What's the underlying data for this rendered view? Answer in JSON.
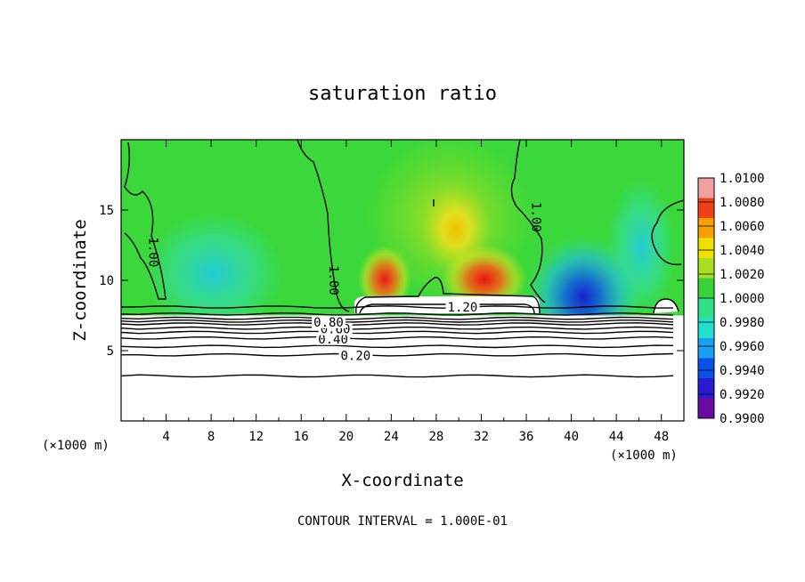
{
  "chart_data": {
    "type": "heatmap",
    "title": "saturation ratio",
    "xlabel": "X-coordinate",
    "ylabel": "Z-coordinate",
    "x_unit_label": "(×1000 m)",
    "z_unit_label": "(×1000 m)",
    "xlim": [
      0,
      50
    ],
    "ylim": [
      0,
      20
    ],
    "x_ticks": [
      4,
      8,
      12,
      16,
      20,
      24,
      28,
      32,
      36,
      40,
      44,
      48
    ],
    "x_tick_labels": [
      "4",
      "8",
      "12",
      "16",
      "20",
      "24",
      "28",
      "32",
      "36",
      "40",
      "44",
      "48"
    ],
    "y_ticks": [
      5,
      10,
      15
    ],
    "y_tick_labels": [
      "5",
      "10",
      "15"
    ],
    "footer": "CONTOUR INTERVAL = 1.000E-01",
    "colorbar": {
      "min": 0.99,
      "max": 1.01,
      "tick_values": [
        0.99,
        0.992,
        0.994,
        0.996,
        0.998,
        1.0,
        1.002,
        1.004,
        1.006,
        1.008,
        1.01
      ],
      "tick_labels": [
        "0.9900",
        "0.9920",
        "0.9940",
        "0.9960",
        "0.9980",
        "1.0000",
        "1.0020",
        "1.0040",
        "1.0060",
        "1.0080",
        "1.0100"
      ],
      "colors": [
        "#6b0aa0",
        "#2a1ad0",
        "#0a50e8",
        "#1aa0f0",
        "#22e0d0",
        "#2ee08a",
        "#3ad23a",
        "#a8e020",
        "#f0e000",
        "#f8a000",
        "#f04018",
        "#f0a0a0"
      ]
    },
    "contour_lines": [
      {
        "label": "0.20",
        "z": 4.7
      },
      {
        "label": "0.40",
        "z": 5.9
      },
      {
        "label": "0.60",
        "z": 6.6
      },
      {
        "label": "0.80",
        "z": 7.1
      },
      {
        "label": "1.00",
        "z": 7.6
      },
      {
        "label": "1.20",
        "z": 8.1
      }
    ],
    "extra_contour_z": [
      3.2,
      5.3,
      6.3,
      6.9,
      7.3
    ],
    "contour_1_00_labels": [
      {
        "label": "1.00",
        "x": 2.5,
        "z": 12.0
      },
      {
        "label": "1.00",
        "x": 18.5,
        "z": 10.0
      },
      {
        "label": "1.00",
        "x": 36.5,
        "z": 14.5
      }
    ],
    "dry_layer_top_z": 7.5,
    "field_features": [
      {
        "x": 23,
        "z": 10.5,
        "value": 1.008
      },
      {
        "x": 32,
        "z": 10.5,
        "value": 1.008
      },
      {
        "x": 29.5,
        "z": 13.5,
        "value": 1.004
      },
      {
        "x": 41,
        "z": 9.5,
        "value": 0.993
      },
      {
        "x": 7,
        "z": 9.5,
        "value": 0.997
      },
      {
        "x": 44,
        "z": 12.0,
        "value": 0.997
      }
    ]
  }
}
